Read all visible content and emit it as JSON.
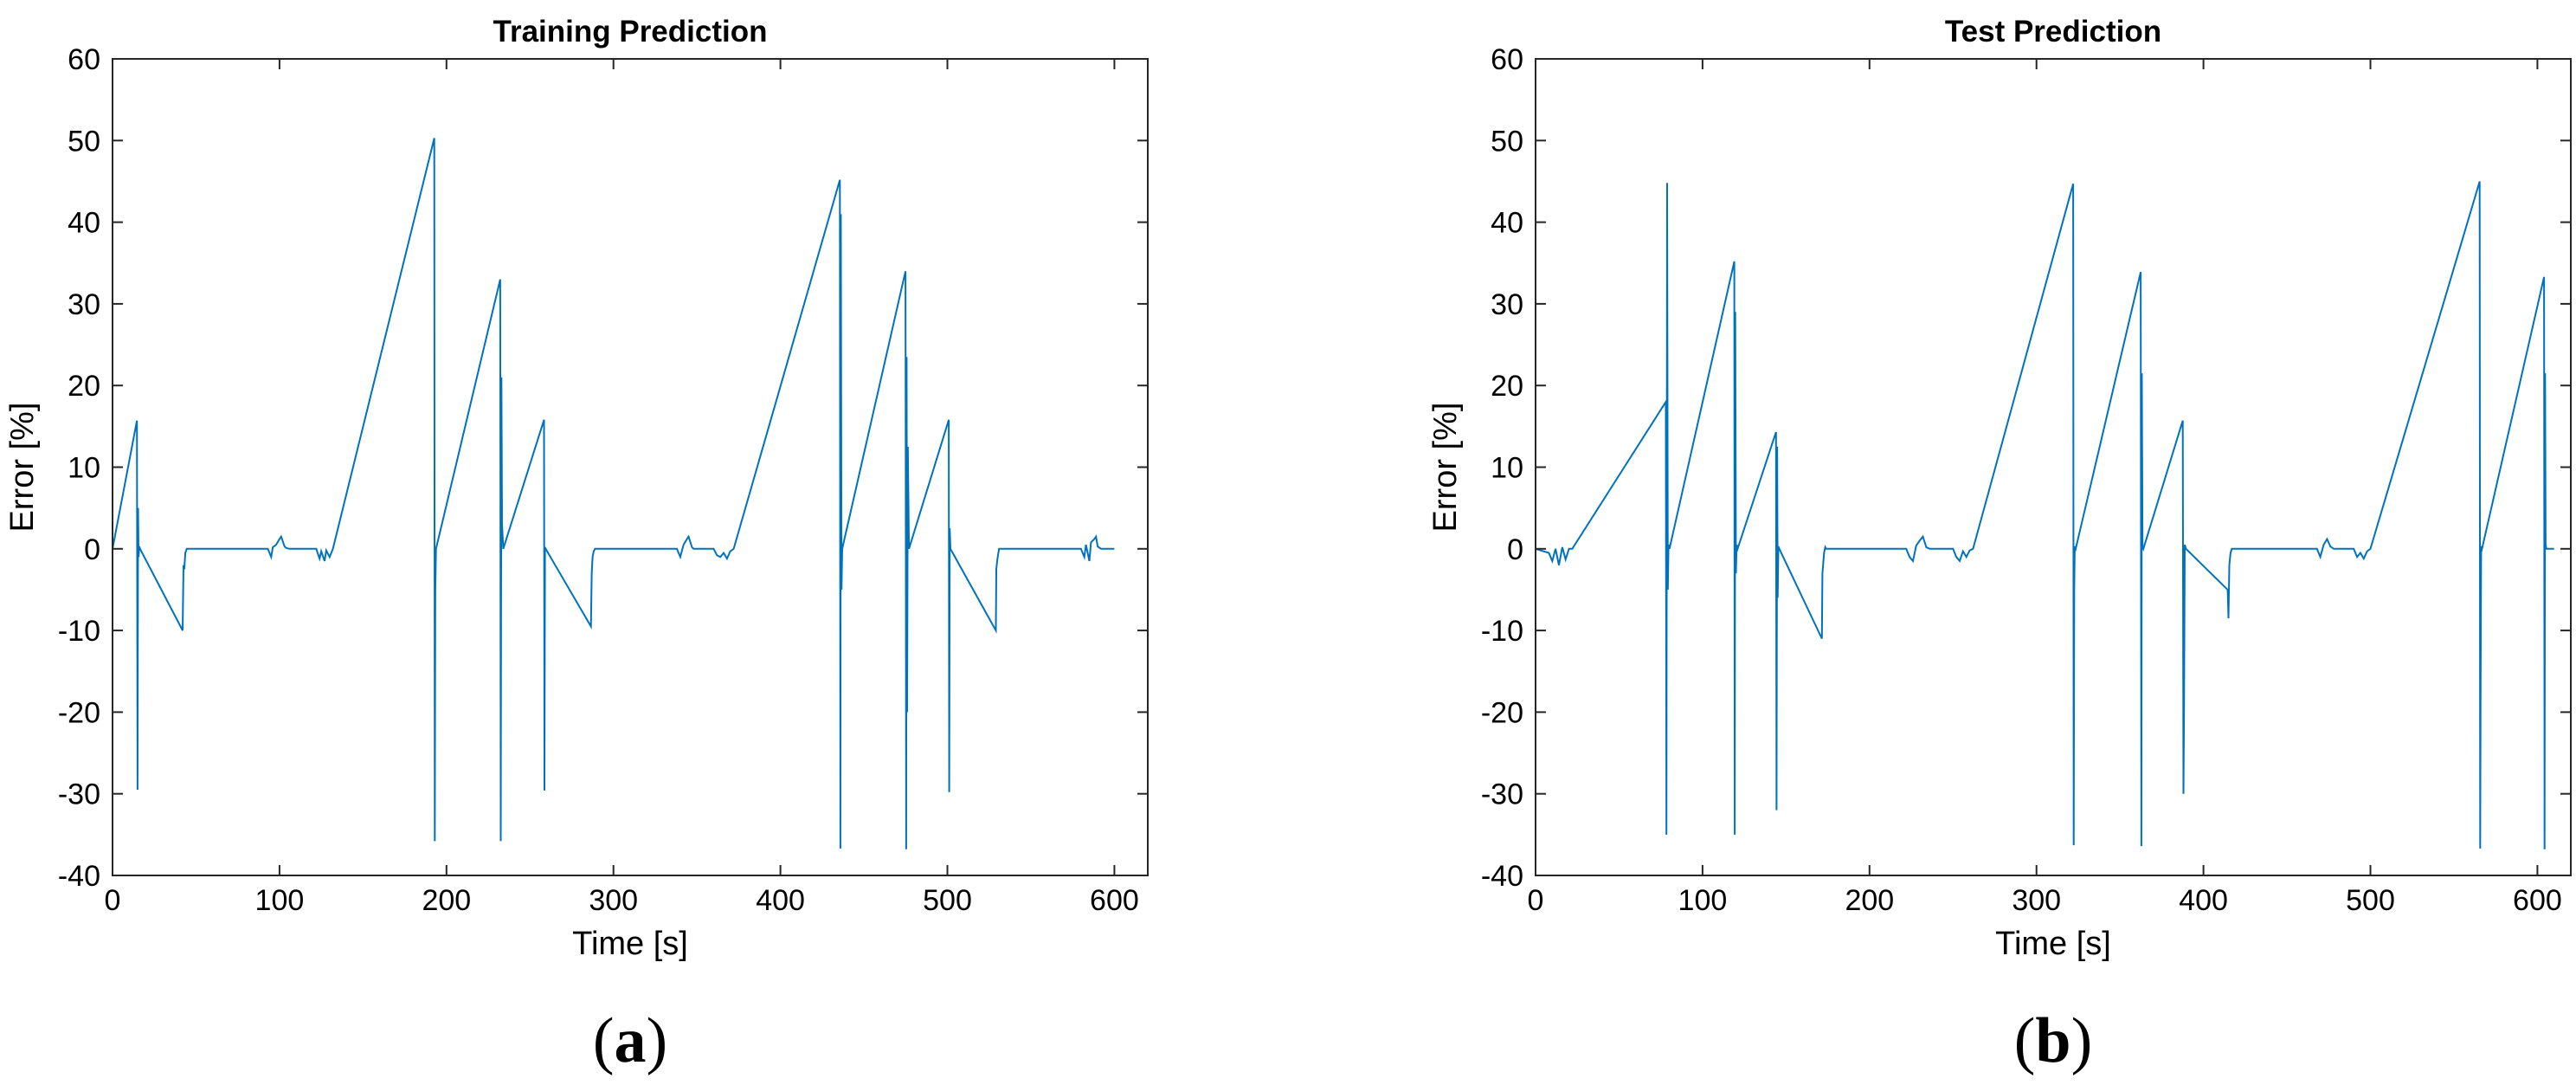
{
  "chart_data": [
    {
      "type": "line",
      "panel_label": "a",
      "title": "Training Prediction",
      "xlabel": "Time [s]",
      "ylabel": "Error [%]",
      "xlim": [
        0,
        620
      ],
      "ylim": [
        -40,
        60
      ],
      "xticks": [
        0,
        100,
        200,
        300,
        400,
        500,
        600
      ],
      "yticks": [
        -40,
        -30,
        -20,
        -10,
        0,
        10,
        20,
        30,
        40,
        50,
        60
      ],
      "grid": false,
      "line_color": "#0072bd",
      "series": [
        {
          "x": [
            0,
            14.6,
            15.0,
            15.3,
            15.6,
            16.0,
            16.5,
            42.0,
            42.5,
            43.0,
            43.6,
            44.5,
            93,
            95,
            96,
            98,
            100,
            101,
            103,
            104,
            106,
            122,
            124,
            125,
            127,
            128,
            130,
            132,
            192.7,
            193.0,
            193.3,
            193.7,
            232.2,
            232.5,
            232.9,
            233.3,
            234,
            258.4,
            258.7,
            259.0,
            259.4,
            286.5,
            287.0,
            287.5,
            288.2,
            289,
            338,
            340,
            342,
            344,
            345,
            347,
            348,
            360,
            362,
            364,
            366,
            368,
            370,
            372,
            435.6,
            435.9,
            436.2,
            436.6,
            437,
            474.9,
            475.3,
            475.6,
            475.9,
            476.3,
            477,
            500.8,
            501.1,
            501.4,
            501.8,
            529.0,
            529.3,
            529.8,
            530.5,
            531,
            580,
            582,
            583,
            585,
            586,
            588,
            589,
            590,
            592,
            594,
            600
          ],
          "y": [
            0,
            15.7,
            -29.5,
            5,
            -1,
            0.3,
            0,
            -10,
            -2,
            -2.5,
            -0.5,
            0,
            0,
            -1,
            0.2,
            0.5,
            1.2,
            1.5,
            0.3,
            0.1,
            0,
            0,
            -1.2,
            -0.3,
            -1.5,
            -0.2,
            -1,
            0,
            50.3,
            -35.8,
            -5,
            0,
            33,
            -35.8,
            21,
            3,
            0,
            15.8,
            -29.6,
            0.2,
            0,
            -9.5,
            -3,
            -1,
            -0.3,
            0,
            0,
            -1,
            0.5,
            1.2,
            1.5,
            0.2,
            0,
            0,
            -0.8,
            -1,
            -0.5,
            -1.2,
            -0.3,
            0,
            45.2,
            -36.7,
            41,
            -5,
            0,
            34,
            -36.8,
            23.5,
            -20,
            12.5,
            0,
            15.8,
            -29.8,
            2.5,
            0,
            -10,
            -2.5,
            -1.5,
            -0.5,
            0,
            0,
            -1,
            0.5,
            -1.5,
            0.8,
            1.2,
            1.5,
            0.3,
            0,
            0,
            0
          ]
        }
      ]
    },
    {
      "type": "line",
      "panel_label": "b",
      "title": "Test Prediction",
      "xlabel": "Time [s]",
      "ylabel": "Error [%]",
      "xlim": [
        0,
        620
      ],
      "ylim": [
        -40,
        60
      ],
      "xticks": [
        0,
        100,
        200,
        300,
        400,
        500,
        600
      ],
      "yticks": [
        -40,
        -30,
        -20,
        -10,
        0,
        10,
        20,
        30,
        40,
        50,
        60
      ],
      "grid": false,
      "line_color": "#0072bd",
      "series": [
        {
          "x": [
            0,
            8,
            10,
            12,
            14,
            16,
            18,
            20,
            22,
            78.0,
            78.4,
            78.8,
            79.2,
            79.6,
            80.2,
            119.0,
            119.3,
            119.6,
            120.0,
            120.4,
            121,
            144.0,
            144.3,
            144.7,
            145.0,
            145.4,
            146,
            171.5,
            171.8,
            172.2,
            172.8,
            173.5,
            174,
            222,
            224,
            226,
            228,
            230,
            232,
            234,
            236,
            250,
            252,
            254,
            256,
            258,
            260,
            262,
            322.0,
            322.3,
            322.6,
            322.9,
            323.5,
            362.4,
            362.8,
            363.1,
            363.5,
            364,
            387.6,
            388.0,
            388.4,
            388.8,
            389.5,
            414.5,
            415.0,
            415.5,
            416.2,
            417,
            468,
            470,
            472,
            474,
            476,
            478,
            490,
            492,
            494,
            496,
            498,
            500,
            565.4,
            565.7,
            566.0,
            566.3,
            566.8,
            604.0,
            604.3,
            604.6,
            604.9,
            605.4,
            606,
            610
          ],
          "y": [
            0,
            -0.5,
            -1.5,
            0,
            -2,
            0.2,
            -1.3,
            0,
            0,
            18,
            -35,
            44.8,
            -5,
            0.5,
            0,
            35.2,
            -35,
            29,
            -3,
            0.5,
            0,
            14.3,
            -32,
            12.5,
            -6,
            0.3,
            0,
            -11,
            -3,
            -2,
            -0.5,
            0.2,
            0,
            0,
            -1,
            -1.5,
            0.4,
            1.0,
            1.5,
            0.2,
            0,
            0,
            -1,
            -1.5,
            -0.3,
            -1,
            -0.2,
            0,
            44.7,
            -36.3,
            -5,
            0.3,
            0,
            33.9,
            -36.4,
            21.5,
            0.3,
            0,
            15.7,
            -30,
            -19,
            0.5,
            0,
            -5,
            -8.5,
            -2,
            -0.5,
            0,
            0,
            -1,
            0.5,
            1.2,
            0.3,
            0,
            0,
            -1,
            -0.5,
            -1.2,
            -0.3,
            0,
            45,
            -36.7,
            -17,
            0.3,
            0,
            33.3,
            -36.8,
            21.5,
            0.5,
            0,
            0,
            0
          ]
        }
      ]
    }
  ]
}
